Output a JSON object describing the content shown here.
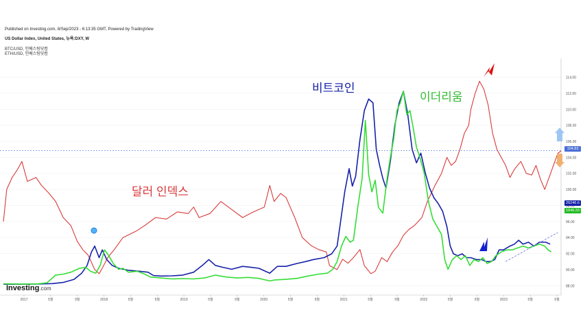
{
  "header": {
    "published": "Published on Investing.com, 8/Sep/2023 - 6:13:35 GMT, Powered by TradingView",
    "title": "US Dollar Index, United States, 뉴욕:DXY, W",
    "legend": [
      "BTC/USD, 인베스팅닷컴",
      "ETH/USD, 인베스팅닷컴"
    ]
  },
  "annotations": {
    "dollar": "달러 인덱스",
    "bitcoin": "비트코인",
    "ethereum": "이더리움"
  },
  "brand": {
    "name": "Investing",
    "suffix": ".com"
  },
  "colors": {
    "dxy": "#d93a3a",
    "btc": "#1520a8",
    "eth": "#33dd33",
    "grid": "#eeeeee",
    "accent": "#4a6fd6"
  },
  "chart_data": {
    "type": "line",
    "x_labels": [
      "2017",
      "5월",
      "9월",
      "2018",
      "5월",
      "9월",
      "2019",
      "5월",
      "9월",
      "2020",
      "5월",
      "9월",
      "2021",
      "5월",
      "9월",
      "2022",
      "5월",
      "9월",
      "2023",
      "5월",
      "9월"
    ],
    "y_ticks": [
      "114.00",
      "112.00",
      "110.00",
      "108.00",
      "106.00",
      "104.00",
      "102.00",
      "100.00",
      "98.00",
      "96.00",
      "94.00",
      "92.00",
      "90.00",
      "88.00"
    ],
    "ylim": [
      87,
      115.5
    ],
    "price_labels": [
      {
        "text": "104.83",
        "color": "#4a6fd6"
      },
      {
        "text": "26246.6",
        "color": "#1520a8"
      },
      {
        "text": "1646.33",
        "color": "#22bb22"
      }
    ],
    "series": [
      {
        "key": "dxy",
        "points": [
          [
            0,
            96.0
          ],
          [
            0.3,
            100.0
          ],
          [
            0.8,
            101.5
          ],
          [
            1.3,
            102.5
          ],
          [
            1.7,
            103.5
          ],
          [
            2.2,
            101.0
          ],
          [
            3.0,
            101.5
          ],
          [
            3.5,
            100.5
          ],
          [
            4.2,
            99.5
          ],
          [
            4.8,
            98.5
          ],
          [
            5.5,
            96.5
          ],
          [
            6.2,
            95.5
          ],
          [
            6.8,
            93.5
          ],
          [
            7.3,
            92.5
          ],
          [
            7.8,
            91.8
          ],
          [
            8.4,
            90.0
          ],
          [
            8.8,
            89.5
          ],
          [
            9.1,
            90.2
          ],
          [
            9.6,
            91.5
          ],
          [
            10.2,
            92.5
          ],
          [
            11.0,
            94.0
          ],
          [
            12.2,
            94.8
          ],
          [
            13.0,
            95.5
          ],
          [
            14.0,
            96.5
          ],
          [
            15.0,
            96.3
          ],
          [
            16.0,
            97.2
          ],
          [
            17.0,
            97.0
          ],
          [
            17.5,
            97.8
          ],
          [
            18.0,
            96.5
          ],
          [
            19.0,
            97.0
          ],
          [
            20.0,
            98.5
          ],
          [
            21.0,
            97.5
          ],
          [
            22.0,
            96.5
          ],
          [
            23.0,
            97.2
          ],
          [
            24.0,
            97.8
          ],
          [
            24.5,
            100.5
          ],
          [
            24.9,
            98.5
          ],
          [
            25.5,
            99.5
          ],
          [
            26.0,
            99.0
          ],
          [
            26.8,
            96.5
          ],
          [
            27.5,
            94.0
          ],
          [
            28.3,
            93.0
          ],
          [
            29.0,
            92.5
          ],
          [
            29.7,
            92.2
          ],
          [
            30.0,
            90.5
          ],
          [
            30.7,
            90.0
          ],
          [
            31.2,
            91.3
          ],
          [
            31.7,
            90.8
          ],
          [
            32.2,
            91.5
          ],
          [
            32.8,
            92.5
          ],
          [
            33.2,
            90.5
          ],
          [
            33.8,
            89.5
          ],
          [
            34.2,
            89.8
          ],
          [
            34.8,
            91.5
          ],
          [
            35.3,
            91.0
          ],
          [
            35.8,
            92.2
          ],
          [
            36.3,
            93.0
          ],
          [
            36.8,
            94.3
          ],
          [
            37.3,
            95.0
          ],
          [
            37.8,
            95.5
          ],
          [
            38.5,
            96.5
          ],
          [
            39.0,
            98.5
          ],
          [
            39.7,
            100.5
          ],
          [
            40.3,
            102.0
          ],
          [
            40.8,
            104.0
          ],
          [
            41.2,
            103.0
          ],
          [
            41.6,
            103.5
          ],
          [
            42.0,
            105.0
          ],
          [
            42.4,
            107.0
          ],
          [
            42.8,
            108.0
          ],
          [
            43.0,
            110.0
          ],
          [
            43.4,
            112.0
          ],
          [
            43.8,
            113.5
          ],
          [
            44.2,
            112.5
          ],
          [
            44.6,
            110.5
          ],
          [
            45.0,
            107.0
          ],
          [
            45.4,
            105.0
          ],
          [
            45.8,
            104.0
          ],
          [
            46.2,
            103.0
          ],
          [
            46.6,
            101.5
          ],
          [
            47.0,
            102.5
          ],
          [
            47.6,
            103.5
          ],
          [
            48.1,
            102.0
          ],
          [
            48.6,
            101.8
          ],
          [
            49.0,
            103.0
          ],
          [
            49.4,
            101.3
          ],
          [
            49.8,
            100.0
          ],
          [
            50.2,
            101.5
          ],
          [
            50.6,
            103.0
          ],
          [
            51.0,
            104.5
          ],
          [
            51.3,
            104.8
          ]
        ]
      },
      {
        "key": "btc",
        "points": [
          [
            0,
            0.003
          ],
          [
            1.5,
            0.003
          ],
          [
            3.0,
            0.004
          ],
          [
            4.5,
            0.006
          ],
          [
            5.5,
            0.012
          ],
          [
            6.5,
            0.028
          ],
          [
            7.2,
            0.06
          ],
          [
            7.7,
            0.1
          ],
          [
            8.1,
            0.17
          ],
          [
            8.4,
            0.2
          ],
          [
            8.8,
            0.14
          ],
          [
            9.1,
            0.18
          ],
          [
            9.5,
            0.13
          ],
          [
            10.0,
            0.1
          ],
          [
            10.6,
            0.085
          ],
          [
            11.5,
            0.075
          ],
          [
            12.5,
            0.07
          ],
          [
            13.3,
            0.065
          ],
          [
            13.8,
            0.048
          ],
          [
            14.5,
            0.045
          ],
          [
            15.5,
            0.046
          ],
          [
            16.5,
            0.05
          ],
          [
            17.5,
            0.065
          ],
          [
            18.3,
            0.1
          ],
          [
            18.9,
            0.13
          ],
          [
            19.5,
            0.1
          ],
          [
            20.2,
            0.09
          ],
          [
            21.0,
            0.08
          ],
          [
            22.0,
            0.095
          ],
          [
            22.8,
            0.09
          ],
          [
            23.5,
            0.085
          ],
          [
            24.5,
            0.06
          ],
          [
            25.2,
            0.095
          ],
          [
            26.0,
            0.095
          ],
          [
            27.0,
            0.11
          ],
          [
            27.8,
            0.12
          ],
          [
            28.5,
            0.13
          ],
          [
            29.5,
            0.14
          ],
          [
            30.2,
            0.16
          ],
          [
            30.7,
            0.2
          ],
          [
            31.0,
            0.32
          ],
          [
            31.4,
            0.48
          ],
          [
            31.8,
            0.6
          ],
          [
            32.1,
            0.51
          ],
          [
            32.4,
            0.56
          ],
          [
            32.8,
            0.75
          ],
          [
            33.2,
            0.9
          ],
          [
            33.6,
            0.96
          ],
          [
            34.0,
            0.94
          ],
          [
            34.3,
            0.7
          ],
          [
            34.6,
            0.62
          ],
          [
            34.9,
            0.55
          ],
          [
            35.2,
            0.5
          ],
          [
            35.6,
            0.64
          ],
          [
            36.0,
            0.82
          ],
          [
            36.4,
            0.94
          ],
          [
            36.8,
            1.0
          ],
          [
            37.2,
            0.88
          ],
          [
            37.6,
            0.7
          ],
          [
            38.0,
            0.63
          ],
          [
            38.4,
            0.68
          ],
          [
            38.8,
            0.58
          ],
          [
            39.2,
            0.5
          ],
          [
            39.6,
            0.45
          ],
          [
            40.0,
            0.42
          ],
          [
            40.4,
            0.38
          ],
          [
            40.8,
            0.3
          ],
          [
            41.1,
            0.2
          ],
          [
            41.4,
            0.16
          ],
          [
            41.8,
            0.15
          ],
          [
            42.2,
            0.16
          ],
          [
            42.6,
            0.14
          ],
          [
            43.0,
            0.14
          ],
          [
            43.5,
            0.13
          ],
          [
            44.0,
            0.13
          ],
          [
            44.4,
            0.12
          ],
          [
            44.8,
            0.12
          ],
          [
            45.2,
            0.13
          ],
          [
            45.6,
            0.18
          ],
          [
            46.0,
            0.18
          ],
          [
            46.6,
            0.2
          ],
          [
            47.0,
            0.21
          ],
          [
            47.4,
            0.23
          ],
          [
            47.8,
            0.21
          ],
          [
            48.3,
            0.22
          ],
          [
            48.8,
            0.2
          ],
          [
            49.3,
            0.22
          ],
          [
            49.9,
            0.22
          ],
          [
            50.3,
            0.21
          ]
        ]
      },
      {
        "key": "eth",
        "points": [
          [
            0,
            0.005
          ],
          [
            1.5,
            0.004
          ],
          [
            3.0,
            0.004
          ],
          [
            4.0,
            0.01
          ],
          [
            4.8,
            0.05
          ],
          [
            5.5,
            0.055
          ],
          [
            6.2,
            0.065
          ],
          [
            7.0,
            0.085
          ],
          [
            7.6,
            0.09
          ],
          [
            8.0,
            0.07
          ],
          [
            8.5,
            0.06
          ],
          [
            8.9,
            0.1
          ],
          [
            9.3,
            0.18
          ],
          [
            9.7,
            0.15
          ],
          [
            10.1,
            0.11
          ],
          [
            10.6,
            0.08
          ],
          [
            11.0,
            0.085
          ],
          [
            11.5,
            0.065
          ],
          [
            12.3,
            0.07
          ],
          [
            13.0,
            0.055
          ],
          [
            13.5,
            0.04
          ],
          [
            14.5,
            0.035
          ],
          [
            15.5,
            0.03
          ],
          [
            16.5,
            0.032
          ],
          [
            17.5,
            0.03
          ],
          [
            18.5,
            0.035
          ],
          [
            19.5,
            0.05
          ],
          [
            20.5,
            0.04
          ],
          [
            21.5,
            0.035
          ],
          [
            22.5,
            0.038
          ],
          [
            23.5,
            0.033
          ],
          [
            24.5,
            0.02
          ],
          [
            25.0,
            0.025
          ],
          [
            26.0,
            0.028
          ],
          [
            27.0,
            0.033
          ],
          [
            28.0,
            0.045
          ],
          [
            29.0,
            0.055
          ],
          [
            29.8,
            0.06
          ],
          [
            30.3,
            0.08
          ],
          [
            30.7,
            0.12
          ],
          [
            31.1,
            0.2
          ],
          [
            31.5,
            0.25
          ],
          [
            31.9,
            0.22
          ],
          [
            32.2,
            0.23
          ],
          [
            32.6,
            0.4
          ],
          [
            33.0,
            0.55
          ],
          [
            33.3,
            0.85
          ],
          [
            33.6,
            0.57
          ],
          [
            33.9,
            0.48
          ],
          [
            34.2,
            0.54
          ],
          [
            34.5,
            0.4
          ],
          [
            34.9,
            0.37
          ],
          [
            35.3,
            0.55
          ],
          [
            35.6,
            0.66
          ],
          [
            35.9,
            0.75
          ],
          [
            36.2,
            0.9
          ],
          [
            36.5,
            0.94
          ],
          [
            36.8,
            1.0
          ],
          [
            37.1,
            0.88
          ],
          [
            37.4,
            0.9
          ],
          [
            37.7,
            0.81
          ],
          [
            38.0,
            0.71
          ],
          [
            38.3,
            0.66
          ],
          [
            38.7,
            0.58
          ],
          [
            39.1,
            0.43
          ],
          [
            39.5,
            0.34
          ],
          [
            39.9,
            0.3
          ],
          [
            40.3,
            0.26
          ],
          [
            40.6,
            0.13
          ],
          [
            40.9,
            0.08
          ],
          [
            41.3,
            0.13
          ],
          [
            41.7,
            0.15
          ],
          [
            42.1,
            0.13
          ],
          [
            42.5,
            0.15
          ],
          [
            42.9,
            0.1
          ],
          [
            43.3,
            0.13
          ],
          [
            43.7,
            0.12
          ],
          [
            44.1,
            0.14
          ],
          [
            44.5,
            0.11
          ],
          [
            44.9,
            0.12
          ],
          [
            45.3,
            0.15
          ],
          [
            45.8,
            0.17
          ],
          [
            46.3,
            0.18
          ],
          [
            46.8,
            0.18
          ],
          [
            47.3,
            0.19
          ],
          [
            47.8,
            0.2
          ],
          [
            48.3,
            0.19
          ],
          [
            48.8,
            0.2
          ],
          [
            49.3,
            0.21
          ],
          [
            49.8,
            0.2
          ],
          [
            50.1,
            0.18
          ],
          [
            50.4,
            0.17
          ]
        ]
      }
    ]
  }
}
